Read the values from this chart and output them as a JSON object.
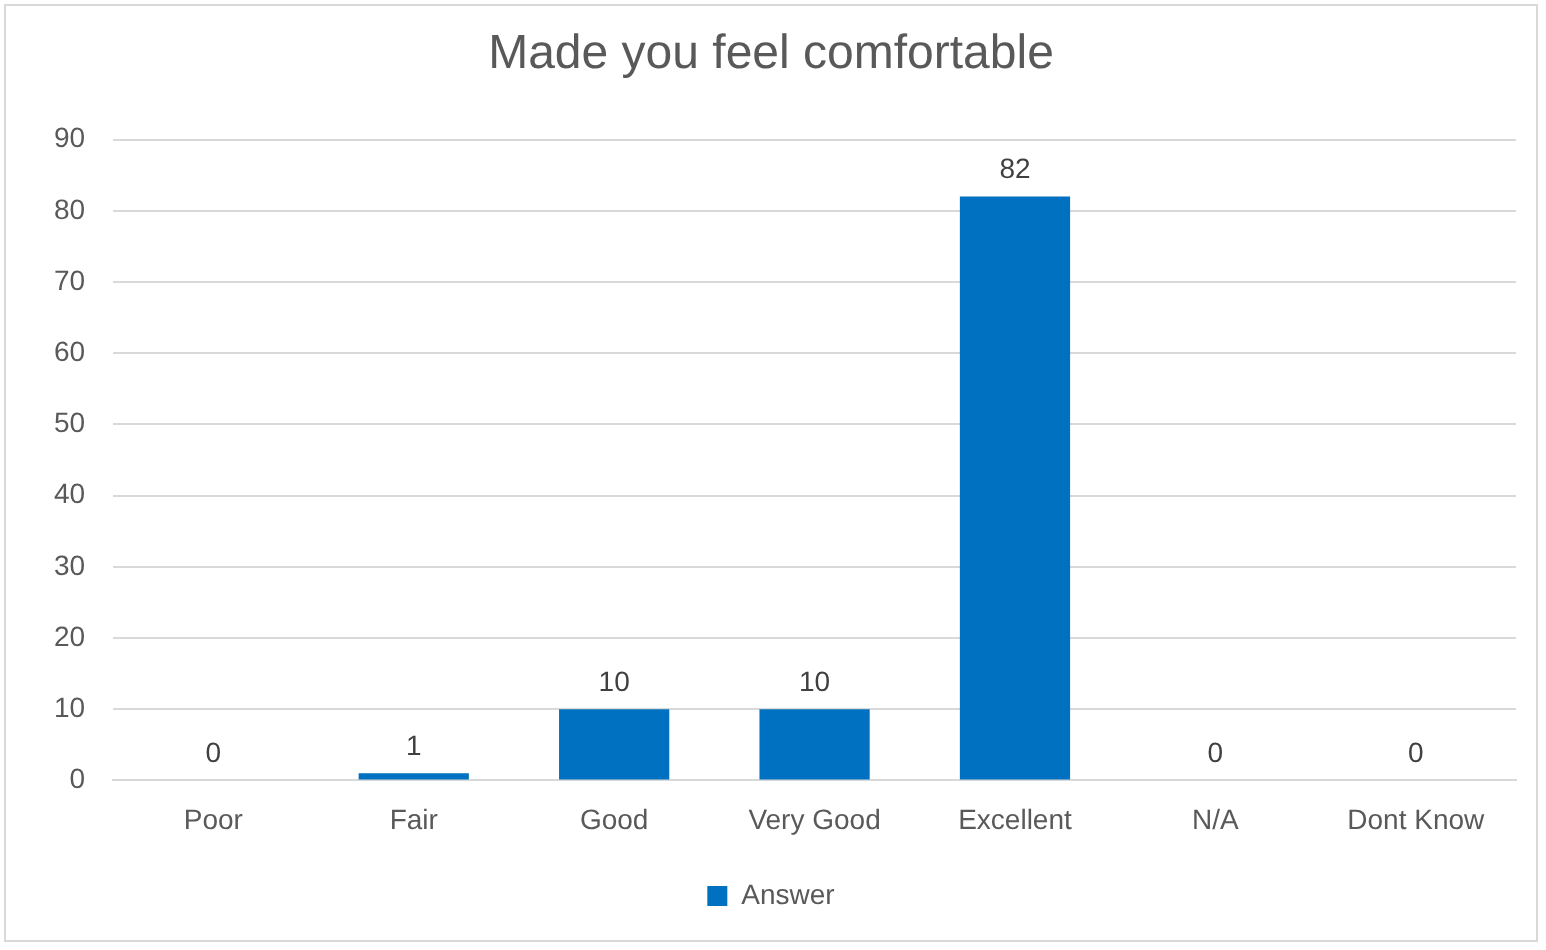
{
  "chart_data": {
    "type": "bar",
    "title": "Made you feel comfortable",
    "categories": [
      "Poor",
      "Fair",
      "Good",
      "Very Good",
      "Excellent",
      "N/A",
      "Dont Know"
    ],
    "series": [
      {
        "name": "Answer",
        "color": "#0070c0",
        "values": [
          0,
          1,
          10,
          10,
          82,
          0,
          0
        ]
      }
    ],
    "ylim": [
      0,
      90
    ],
    "yticks": [
      0,
      10,
      20,
      30,
      40,
      50,
      60,
      70,
      80,
      90
    ],
    "grid": "y",
    "legend": "bottom",
    "data_labels": true
  }
}
